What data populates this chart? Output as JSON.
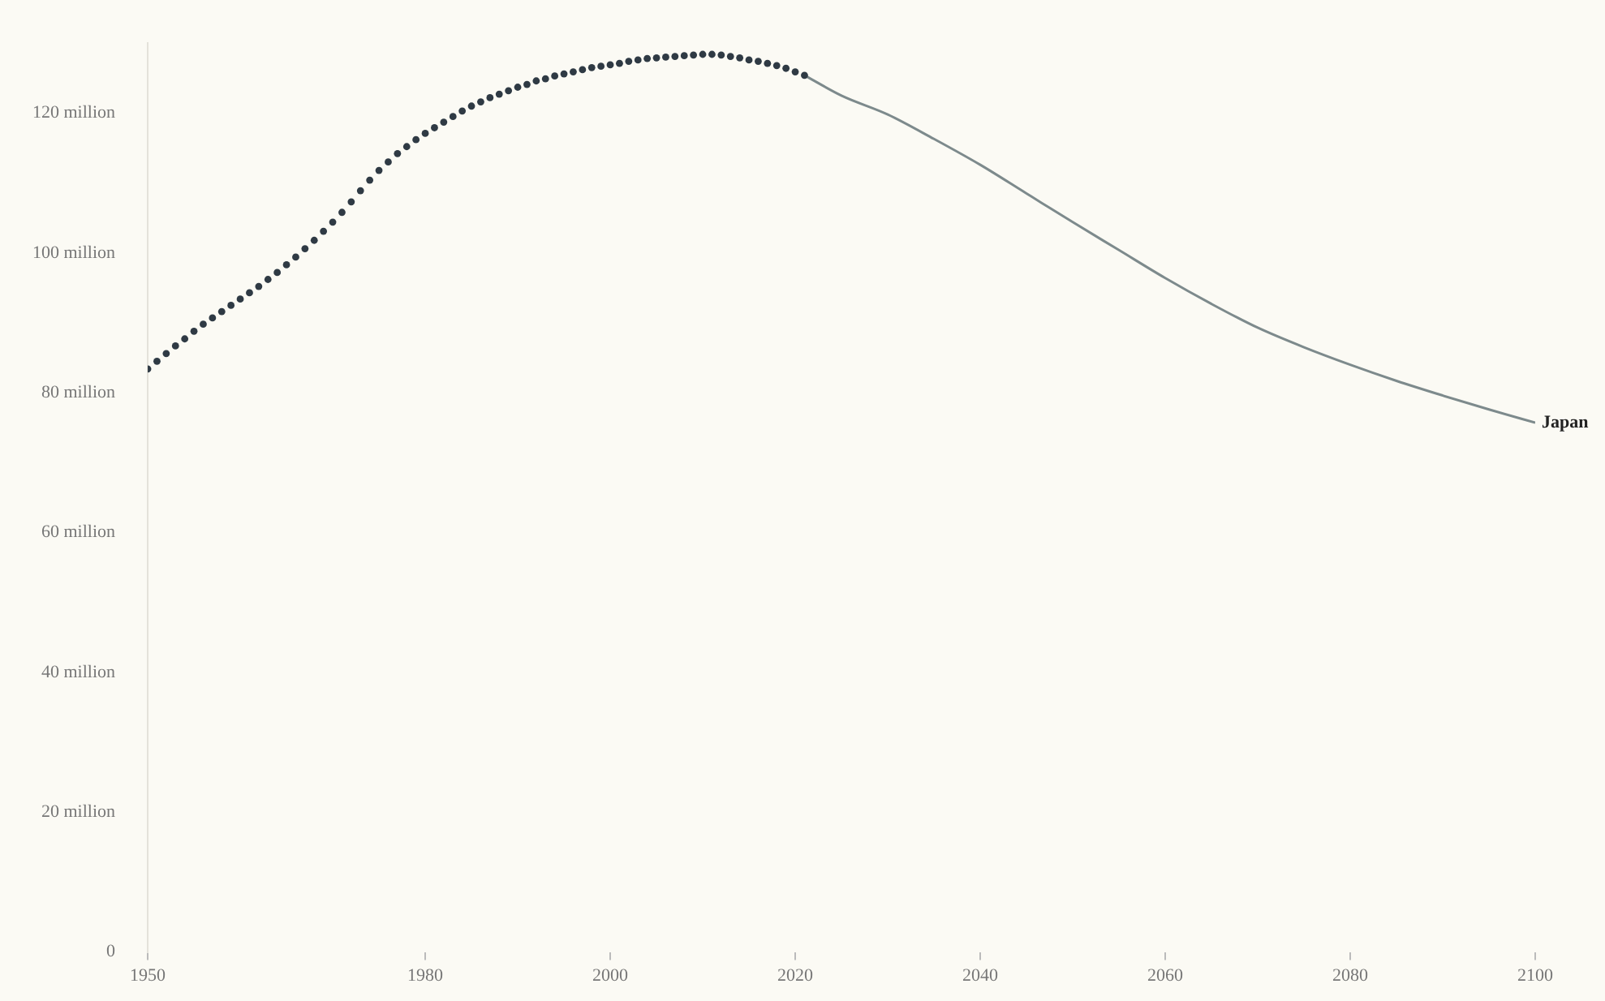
{
  "chart_data": {
    "type": "line",
    "xlim": [
      1950,
      2100
    ],
    "ylim": [
      0,
      130
    ],
    "xticks": [
      1950,
      1980,
      2000,
      2020,
      2040,
      2060,
      2080,
      2100
    ],
    "yticks": [
      {
        "value": 0,
        "label": "0"
      },
      {
        "value": 20,
        "label": "20 million"
      },
      {
        "value": 40,
        "label": "40 million"
      },
      {
        "value": 60,
        "label": "60 million"
      },
      {
        "value": 80,
        "label": "80 million"
      },
      {
        "value": 100,
        "label": "100 million"
      },
      {
        "value": 120,
        "label": "120 million"
      }
    ],
    "grid": false,
    "legend": false,
    "series": [
      {
        "type": "scatter",
        "color": "#2f3a44",
        "marker": "circle",
        "x": [
          1950,
          1951,
          1952,
          1953,
          1954,
          1955,
          1956,
          1957,
          1958,
          1959,
          1960,
          1961,
          1962,
          1963,
          1964,
          1965,
          1966,
          1967,
          1968,
          1969,
          1970,
          1971,
          1972,
          1973,
          1974,
          1975,
          1976,
          1977,
          1978,
          1979,
          1980,
          1981,
          1982,
          1983,
          1984,
          1985,
          1986,
          1987,
          1988,
          1989,
          1990,
          1991,
          1992,
          1993,
          1994,
          1995,
          1996,
          1997,
          1998,
          1999,
          2000,
          2001,
          2002,
          2003,
          2004,
          2005,
          2006,
          2007,
          2008,
          2009,
          2010,
          2011,
          2012,
          2013,
          2014,
          2015,
          2016,
          2017,
          2018,
          2019,
          2020,
          2021
        ],
        "values": [
          83.4,
          84.5,
          85.6,
          86.7,
          87.7,
          88.8,
          89.8,
          90.7,
          91.6,
          92.5,
          93.4,
          94.3,
          95.2,
          96.2,
          97.2,
          98.3,
          99.4,
          100.6,
          101.8,
          103.1,
          104.4,
          105.8,
          107.3,
          108.9,
          110.4,
          111.8,
          113.0,
          114.2,
          115.2,
          116.2,
          117.1,
          117.9,
          118.7,
          119.5,
          120.3,
          121.0,
          121.6,
          122.2,
          122.7,
          123.2,
          123.7,
          124.1,
          124.6,
          124.9,
          125.3,
          125.6,
          125.9,
          126.2,
          126.5,
          126.7,
          126.9,
          127.1,
          127.4,
          127.6,
          127.8,
          127.9,
          128.0,
          128.1,
          128.2,
          128.3,
          128.4,
          128.4,
          128.3,
          128.1,
          127.9,
          127.6,
          127.4,
          127.1,
          126.8,
          126.4,
          125.9,
          125.4
        ]
      },
      {
        "name": "Japan",
        "color": "#7d8a8c",
        "marker": "none",
        "line_style": "solid",
        "x": [
          2021,
          2025,
          2030,
          2035,
          2040,
          2045,
          2050,
          2055,
          2060,
          2065,
          2070,
          2075,
          2080,
          2085,
          2090,
          2095,
          2100
        ],
        "values": [
          125.4,
          122.5,
          119.8,
          116.3,
          112.6,
          108.5,
          104.4,
          100.4,
          96.4,
          92.7,
          89.3,
          86.5,
          84.0,
          81.7,
          79.6,
          77.6,
          75.7
        ]
      }
    ]
  }
}
